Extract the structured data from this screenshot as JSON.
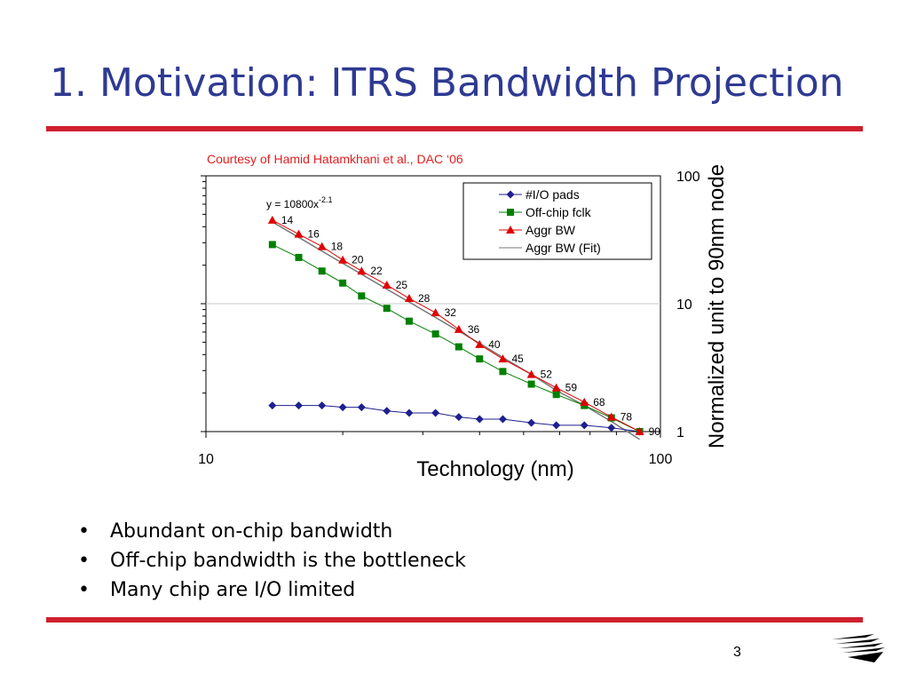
{
  "slide": {
    "title": "1. Motivation: ITRS Bandwidth Projection",
    "courtesy": "Courtesy of Hamid Hatamkhani et al., DAC ‘06",
    "bullets": [
      "Abundant on-chip bandwidth",
      "Off-chip bandwidth is the bottleneck",
      "Many chip are I/O limited"
    ],
    "page_number": "3",
    "logo": "university-logo-icon"
  },
  "colors": {
    "title": "#2E3A92",
    "rule": "#D0202E",
    "courtesy": "#E02020",
    "io_pads": "#1F1F8F",
    "offchip": "#008000",
    "aggr": "#E00000",
    "fit": "#777777"
  },
  "chart_data": {
    "type": "line",
    "xscale": "log",
    "yscale": "log",
    "xlim": [
      10,
      100
    ],
    "ylim": [
      1,
      100
    ],
    "xlabel": "Technology (nm)",
    "ylabel": "Normalized unit to 90nm node",
    "x_ticks": [
      "10",
      "100"
    ],
    "y_ticks": [
      "1",
      "10",
      "100"
    ],
    "grid": "horizontal",
    "legend": "top-right",
    "equation": {
      "base": "y = 10800x",
      "exponent": "-2.1"
    },
    "x": [
      14,
      16,
      18,
      20,
      22,
      25,
      28,
      32,
      36,
      40,
      45,
      52,
      59,
      68,
      78,
      90
    ],
    "point_labels": [
      "14",
      "16",
      "18",
      "20",
      "22",
      "25",
      "28",
      "32",
      "36",
      "40",
      "45",
      "52",
      "59",
      "68",
      "78",
      "90"
    ],
    "series": [
      {
        "name": "#I/O pads",
        "marker": "diamond",
        "color": "#1F1F8F",
        "values": [
          1.6,
          1.6,
          1.6,
          1.55,
          1.55,
          1.45,
          1.4,
          1.4,
          1.3,
          1.25,
          1.25,
          1.17,
          1.12,
          1.12,
          1.07,
          1.0
        ]
      },
      {
        "name": "Off-chip fclk",
        "marker": "square",
        "color": "#008000",
        "values": [
          29,
          23,
          18,
          14.5,
          11.5,
          9.2,
          7.3,
          5.8,
          4.6,
          3.7,
          2.95,
          2.35,
          1.95,
          1.6,
          1.28,
          1.0
        ]
      },
      {
        "name": "Aggr BW",
        "marker": "triangle",
        "color": "#E00000",
        "values": [
          45,
          35,
          28,
          22,
          18,
          14,
          11,
          8.5,
          6.3,
          4.8,
          3.7,
          2.8,
          2.2,
          1.7,
          1.3,
          1.0
        ]
      },
      {
        "name": "Aggr BW (Fit)",
        "marker": "none",
        "color": "#777777",
        "values": [
          43.6,
          33.0,
          25.8,
          20.7,
          17.0,
          13.0,
          10.3,
          7.8,
          6.1,
          4.9,
          3.8,
          2.8,
          2.1,
          1.6,
          1.2,
          0.87
        ]
      }
    ]
  }
}
